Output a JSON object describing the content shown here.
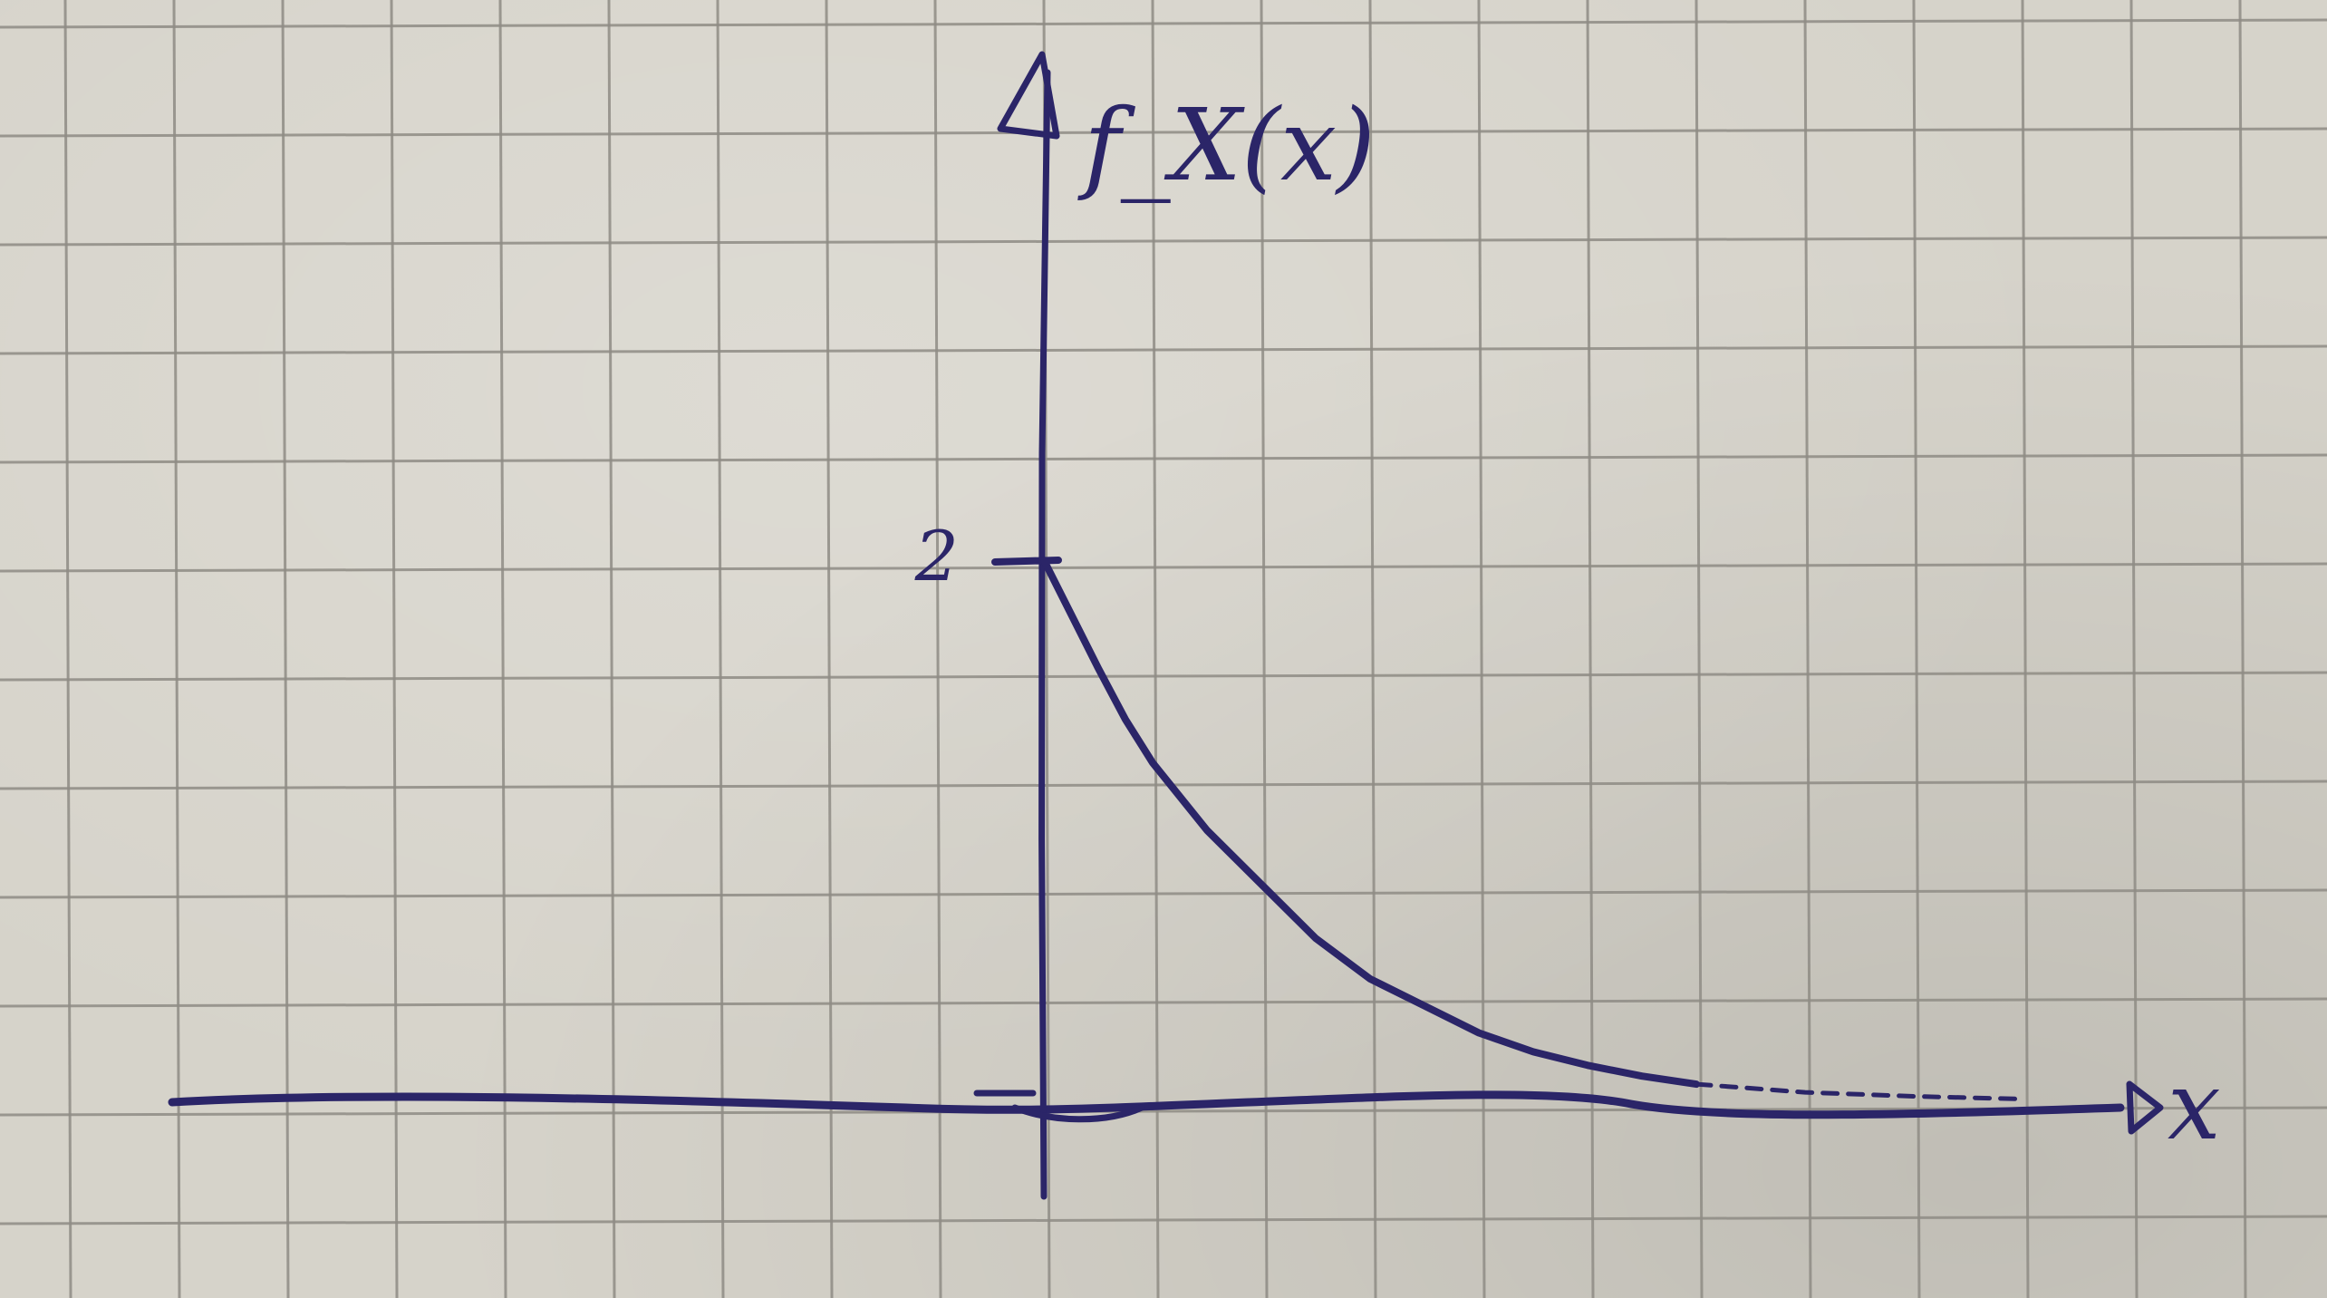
{
  "chart_data": {
    "type": "line",
    "ylabel": "f_X(x)",
    "xlabel": "x",
    "y_tick_labels": [
      "2"
    ],
    "series": [
      {
        "x": [
          0,
          0.25,
          0.5,
          0.75,
          1,
          1.5,
          2,
          2.5,
          3,
          3.5,
          4,
          4.5,
          5,
          5.5,
          6,
          7,
          8,
          9
        ],
        "values": [
          2,
          1.8,
          1.6,
          1.41,
          1.25,
          1.0,
          0.8,
          0.6,
          0.45,
          0.35,
          0.25,
          0.18,
          0.13,
          0.09,
          0.06,
          0.03,
          0.015,
          0.005
        ]
      }
    ],
    "xlim": [
      -8,
      11
    ],
    "ylim": [
      -0.9,
      5
    ],
    "grid": true
  },
  "colors": {
    "ink": "#2b2568",
    "paper": "#d6d3ca",
    "grid": "#8f8c85"
  }
}
